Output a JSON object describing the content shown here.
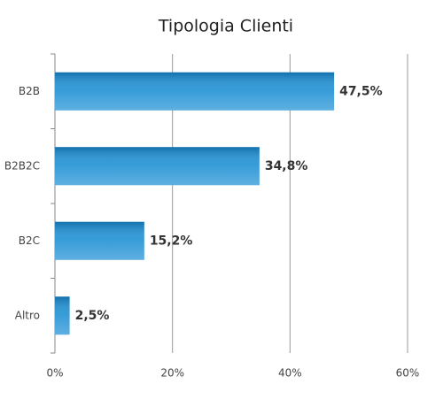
{
  "chart_data": {
    "type": "hbar",
    "title": "Tipologia Clienti",
    "categories": [
      "B2B",
      "B2B2C",
      "B2C",
      "Altro"
    ],
    "values": [
      47.5,
      34.8,
      15.2,
      2.5
    ],
    "value_labels": [
      "47,5%",
      "34,8%",
      "15,2%",
      "2,5%"
    ],
    "color": "#1a8ed3",
    "xlim": [
      0,
      60
    ],
    "xticks": [
      {
        "value": 0,
        "label": "0%"
      },
      {
        "value": 20,
        "label": "20%"
      },
      {
        "value": 40,
        "label": "40%"
      },
      {
        "value": 60,
        "label": "60%"
      }
    ],
    "grid": true
  }
}
